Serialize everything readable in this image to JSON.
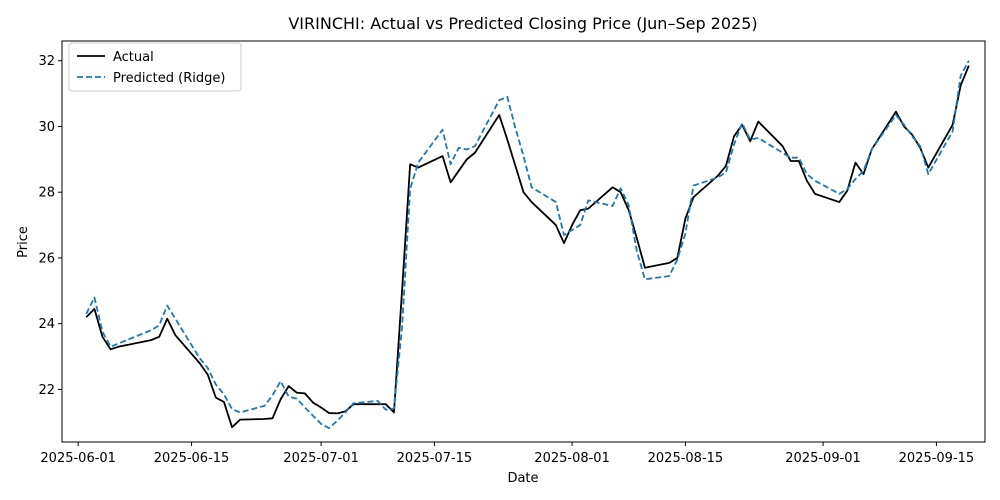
{
  "chart_data": {
    "type": "line",
    "title": "VIRINCHI: Actual vs Predicted Closing Price (Jun–Sep 2025)",
    "xlabel": "Date",
    "ylabel": "Price",
    "x_tick_labels": [
      "2025-06-01",
      "2025-06-15",
      "2025-07-01",
      "2025-07-15",
      "2025-08-01",
      "2025-08-15",
      "2025-09-01",
      "2025-09-15"
    ],
    "x_tick_dates": [
      "2025-06-01",
      "2025-06-15",
      "2025-07-01",
      "2025-07-15",
      "2025-08-01",
      "2025-08-15",
      "2025-09-01",
      "2025-09-15"
    ],
    "y_ticks": [
      22,
      24,
      26,
      28,
      30,
      32
    ],
    "xlim": [
      "2025-05-30",
      "2025-09-21"
    ],
    "ylim": [
      20.4,
      32.6
    ],
    "grid": false,
    "legend_position": "top-left",
    "series": [
      {
        "name": "Actual",
        "color": "#000000",
        "style": "solid",
        "points": [
          [
            "2025-06-02",
            24.2
          ],
          [
            "2025-06-03",
            24.45
          ],
          [
            "2025-06-04",
            23.6
          ],
          [
            "2025-06-05",
            23.22
          ],
          [
            "2025-06-06",
            23.3
          ],
          [
            "2025-06-09",
            23.45
          ],
          [
            "2025-06-10",
            23.5
          ],
          [
            "2025-06-11",
            23.6
          ],
          [
            "2025-06-12",
            24.15
          ],
          [
            "2025-06-13",
            23.65
          ],
          [
            "2025-06-16",
            22.8
          ],
          [
            "2025-06-17",
            22.45
          ],
          [
            "2025-06-18",
            21.75
          ],
          [
            "2025-06-19",
            21.62
          ],
          [
            "2025-06-20",
            20.85
          ],
          [
            "2025-06-21",
            21.08
          ],
          [
            "2025-06-24",
            21.1
          ],
          [
            "2025-06-25",
            21.12
          ],
          [
            "2025-06-26",
            21.7
          ],
          [
            "2025-06-27",
            22.1
          ],
          [
            "2025-06-28",
            21.9
          ],
          [
            "2025-06-29",
            21.88
          ],
          [
            "2025-06-30",
            21.6
          ],
          [
            "2025-07-01",
            21.45
          ],
          [
            "2025-07-02",
            21.28
          ],
          [
            "2025-07-03",
            21.27
          ],
          [
            "2025-07-04",
            21.33
          ],
          [
            "2025-07-05",
            21.55
          ],
          [
            "2025-07-08",
            21.55
          ],
          [
            "2025-07-09",
            21.55
          ],
          [
            "2025-07-10",
            21.3
          ],
          [
            "2025-07-11",
            25.0
          ],
          [
            "2025-07-12",
            28.85
          ],
          [
            "2025-07-13",
            28.75
          ],
          [
            "2025-07-16",
            29.1
          ],
          [
            "2025-07-17",
            28.3
          ],
          [
            "2025-07-18",
            28.65
          ],
          [
            "2025-07-19",
            29.0
          ],
          [
            "2025-07-20",
            29.2
          ],
          [
            "2025-07-23",
            30.35
          ],
          [
            "2025-07-24",
            29.6
          ],
          [
            "2025-07-25",
            28.8
          ],
          [
            "2025-07-26",
            28.0
          ],
          [
            "2025-07-27",
            27.7
          ],
          [
            "2025-07-30",
            27.0
          ],
          [
            "2025-07-31",
            26.45
          ],
          [
            "2025-08-01",
            27.0
          ],
          [
            "2025-08-02",
            27.45
          ],
          [
            "2025-08-03",
            27.5
          ],
          [
            "2025-08-06",
            28.15
          ],
          [
            "2025-08-07",
            28.0
          ],
          [
            "2025-08-08",
            27.45
          ],
          [
            "2025-08-09",
            26.6
          ],
          [
            "2025-08-10",
            25.7
          ],
          [
            "2025-08-13",
            25.85
          ],
          [
            "2025-08-14",
            26.0
          ],
          [
            "2025-08-15",
            27.2
          ],
          [
            "2025-08-16",
            27.85
          ],
          [
            "2025-08-19",
            28.5
          ],
          [
            "2025-08-20",
            28.8
          ],
          [
            "2025-08-21",
            29.7
          ],
          [
            "2025-08-22",
            30.05
          ],
          [
            "2025-08-23",
            29.55
          ],
          [
            "2025-08-24",
            30.15
          ],
          [
            "2025-08-27",
            29.4
          ],
          [
            "2025-08-28",
            28.95
          ],
          [
            "2025-08-29",
            28.95
          ],
          [
            "2025-08-30",
            28.35
          ],
          [
            "2025-08-31",
            27.95
          ],
          [
            "2025-09-03",
            27.7
          ],
          [
            "2025-09-04",
            28.05
          ],
          [
            "2025-09-05",
            28.9
          ],
          [
            "2025-09-06",
            28.55
          ],
          [
            "2025-09-07",
            29.3
          ],
          [
            "2025-09-10",
            30.45
          ],
          [
            "2025-09-11",
            30.0
          ],
          [
            "2025-09-12",
            29.75
          ],
          [
            "2025-09-13",
            29.35
          ],
          [
            "2025-09-14",
            28.75
          ],
          [
            "2025-09-17",
            30.05
          ],
          [
            "2025-09-18",
            31.25
          ],
          [
            "2025-09-19",
            31.85
          ]
        ]
      },
      {
        "name": "Predicted (Ridge)",
        "color": "#1f77b4",
        "style": "dashed",
        "points": [
          [
            "2025-06-02",
            24.3
          ],
          [
            "2025-06-03",
            24.8
          ],
          [
            "2025-06-04",
            23.75
          ],
          [
            "2025-06-05",
            23.3
          ],
          [
            "2025-06-06",
            23.4
          ],
          [
            "2025-06-09",
            23.7
          ],
          [
            "2025-06-10",
            23.8
          ],
          [
            "2025-06-11",
            23.95
          ],
          [
            "2025-06-12",
            24.55
          ],
          [
            "2025-06-13",
            24.15
          ],
          [
            "2025-06-16",
            22.95
          ],
          [
            "2025-06-17",
            22.65
          ],
          [
            "2025-06-18",
            22.15
          ],
          [
            "2025-06-19",
            21.85
          ],
          [
            "2025-06-20",
            21.4
          ],
          [
            "2025-06-21",
            21.3
          ],
          [
            "2025-06-24",
            21.5
          ],
          [
            "2025-06-25",
            21.82
          ],
          [
            "2025-06-26",
            22.25
          ],
          [
            "2025-06-27",
            21.78
          ],
          [
            "2025-06-28",
            21.72
          ],
          [
            "2025-06-29",
            21.45
          ],
          [
            "2025-06-30",
            21.2
          ],
          [
            "2025-07-01",
            20.95
          ],
          [
            "2025-07-02",
            20.82
          ],
          [
            "2025-07-03",
            21.05
          ],
          [
            "2025-07-04",
            21.3
          ],
          [
            "2025-07-05",
            21.58
          ],
          [
            "2025-07-08",
            21.65
          ],
          [
            "2025-07-09",
            21.38
          ],
          [
            "2025-07-10",
            21.42
          ],
          [
            "2025-07-11",
            23.9
          ],
          [
            "2025-07-12",
            28.1
          ],
          [
            "2025-07-13",
            28.9
          ],
          [
            "2025-07-16",
            29.9
          ],
          [
            "2025-07-17",
            28.85
          ],
          [
            "2025-07-18",
            29.35
          ],
          [
            "2025-07-19",
            29.3
          ],
          [
            "2025-07-20",
            29.4
          ],
          [
            "2025-07-23",
            30.8
          ],
          [
            "2025-07-24",
            30.9
          ],
          [
            "2025-07-25",
            29.95
          ],
          [
            "2025-07-26",
            29.1
          ],
          [
            "2025-07-27",
            28.15
          ],
          [
            "2025-07-30",
            27.7
          ],
          [
            "2025-07-31",
            26.7
          ],
          [
            "2025-08-01",
            26.85
          ],
          [
            "2025-08-02",
            27.0
          ],
          [
            "2025-08-03",
            27.75
          ],
          [
            "2025-08-06",
            27.58
          ],
          [
            "2025-08-07",
            28.12
          ],
          [
            "2025-08-08",
            27.6
          ],
          [
            "2025-08-09",
            26.2
          ],
          [
            "2025-08-10",
            25.35
          ],
          [
            "2025-08-13",
            25.45
          ],
          [
            "2025-08-14",
            25.95
          ],
          [
            "2025-08-15",
            26.75
          ],
          [
            "2025-08-16",
            28.2
          ],
          [
            "2025-08-19",
            28.45
          ],
          [
            "2025-08-20",
            28.6
          ],
          [
            "2025-08-21",
            29.45
          ],
          [
            "2025-08-22",
            30.1
          ],
          [
            "2025-08-23",
            29.6
          ],
          [
            "2025-08-24",
            29.65
          ],
          [
            "2025-08-27",
            29.2
          ],
          [
            "2025-08-28",
            29.05
          ],
          [
            "2025-08-29",
            29.05
          ],
          [
            "2025-08-30",
            28.55
          ],
          [
            "2025-08-31",
            28.35
          ],
          [
            "2025-09-03",
            27.95
          ],
          [
            "2025-09-04",
            28.1
          ],
          [
            "2025-09-05",
            28.4
          ],
          [
            "2025-09-06",
            28.65
          ],
          [
            "2025-09-07",
            29.3
          ],
          [
            "2025-09-10",
            30.35
          ],
          [
            "2025-09-11",
            30.05
          ],
          [
            "2025-09-12",
            29.7
          ],
          [
            "2025-09-13",
            29.4
          ],
          [
            "2025-09-14",
            28.55
          ],
          [
            "2025-09-17",
            29.85
          ],
          [
            "2025-09-18",
            31.55
          ],
          [
            "2025-09-19",
            32.0
          ]
        ]
      }
    ]
  }
}
